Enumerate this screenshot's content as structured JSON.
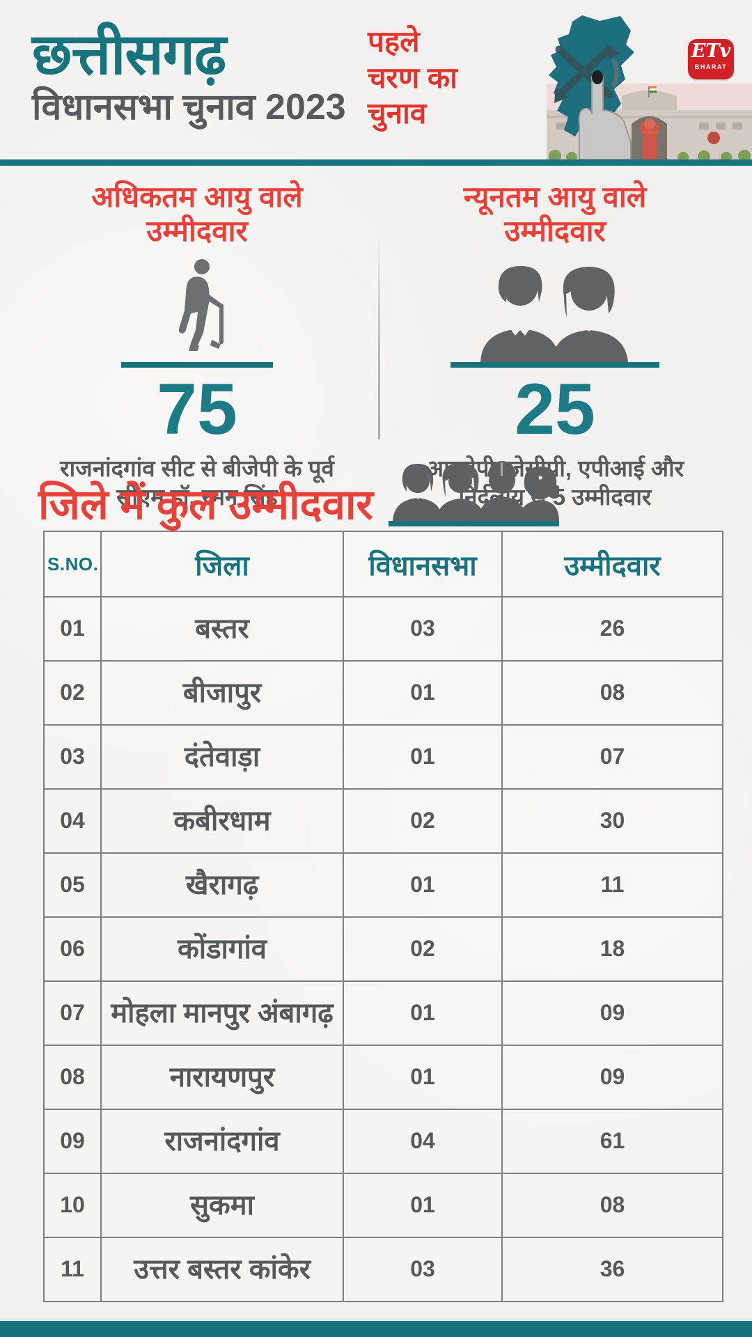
{
  "header": {
    "title": "छत्तीसगढ़",
    "subtitle": "विधानसभा चुनाव 2023",
    "phase_lines": [
      "पहले",
      "चरण का",
      "चुनाव"
    ],
    "logo": {
      "brand": "ETv",
      "sub": "BHARAT"
    }
  },
  "colors": {
    "teal": "#16727C",
    "red_heading": "#E8413A",
    "phase_red": "#E0342D",
    "gray_text": "#58595B",
    "logo_red": "#D22027",
    "background": "#F1F0EE"
  },
  "stats": [
    {
      "id": "oldest-candidate",
      "heading_lines": [
        "अधिकतम आयु वाले",
        "उम्मीदवार"
      ],
      "icon": "elderly-man-with-cane-icon",
      "value": "75",
      "caption_lines": [
        "राजनांदगांव सीट से बीजेपी के पूर्व",
        "सीएम डॉ. रमन सिंह"
      ]
    },
    {
      "id": "youngest-candidate",
      "heading_lines": [
        "न्यूनतम आयु वाले",
        "उम्मीदवार"
      ],
      "icon": "young-man-and-woman-icon",
      "value": "25",
      "caption_lines": [
        "आरजेपी, जेसीपी, एपीआई और",
        "निर्दलीय से 5 उम्मीदवार"
      ]
    }
  ],
  "table_section": {
    "heading": "जिले में कुल उम्मीदवार",
    "icon": "group-of-candidates-icon",
    "table": {
      "headers": [
        "S.NO.",
        "जिला",
        "विधानसभा",
        "उम्मीदवार"
      ],
      "rows": [
        {
          "sno": "01",
          "district": "बस्तर",
          "assembly": "03",
          "candidates": "26"
        },
        {
          "sno": "02",
          "district": "बीजापुर",
          "assembly": "01",
          "candidates": "08"
        },
        {
          "sno": "03",
          "district": "दंतेवाड़ा",
          "assembly": "01",
          "candidates": "07"
        },
        {
          "sno": "04",
          "district": "कबीरधाम",
          "assembly": "02",
          "candidates": "30"
        },
        {
          "sno": "05",
          "district": "खैरागढ़",
          "assembly": "01",
          "candidates": "11"
        },
        {
          "sno": "06",
          "district": "कोंडागांव",
          "assembly": "02",
          "candidates": "18"
        },
        {
          "sno": "07",
          "district": "मोहला मानपुर अंबागढ़",
          "assembly": "01",
          "candidates": "09"
        },
        {
          "sno": "08",
          "district": "नारायणपुर",
          "assembly": "01",
          "candidates": "09"
        },
        {
          "sno": "09",
          "district": "राजनांदगांव",
          "assembly": "04",
          "candidates": "61"
        },
        {
          "sno": "10",
          "district": "सुकमा",
          "assembly": "01",
          "candidates": "08"
        },
        {
          "sno": "11",
          "district": "उत्तर बस्तर कांकेर",
          "assembly": "03",
          "candidates": "36"
        }
      ]
    }
  },
  "chart_data": {
    "type": "table",
    "title": "जिले में कुल उम्मीदवार",
    "columns": [
      "S.NO.",
      "जिला",
      "विधानसभा",
      "उम्मीदवार"
    ],
    "rows": [
      [
        "01",
        "बस्तर",
        "03",
        "26"
      ],
      [
        "02",
        "बीजापुर",
        "01",
        "08"
      ],
      [
        "03",
        "दंतेवाड़ा",
        "01",
        "07"
      ],
      [
        "04",
        "कबीरधाम",
        "02",
        "30"
      ],
      [
        "05",
        "खैरागढ़",
        "01",
        "11"
      ],
      [
        "06",
        "कोंडागांव",
        "02",
        "18"
      ],
      [
        "07",
        "मोहला मानपुर अंबागढ़",
        "01",
        "09"
      ],
      [
        "08",
        "नारायणपुर",
        "01",
        "09"
      ],
      [
        "09",
        "राजनांदगांव",
        "04",
        "61"
      ],
      [
        "10",
        "सुकमा",
        "01",
        "08"
      ],
      [
        "11",
        "उत्तर बस्तर कांकेर",
        "03",
        "36"
      ]
    ],
    "highlights": [
      {
        "label": "अधिकतम आयु वाले उम्मीदवार",
        "value": 75,
        "note": "राजनांदगांव सीट से बीजेपी के पूर्व सीएम डॉ. रमन सिंह"
      },
      {
        "label": "न्यूनतम आयु वाले उम्मीदवार",
        "value": 25,
        "note": "आरजेपी, जेसीपी, एपीआई और निर्दलीय से 5 उम्मीदवार"
      }
    ]
  }
}
